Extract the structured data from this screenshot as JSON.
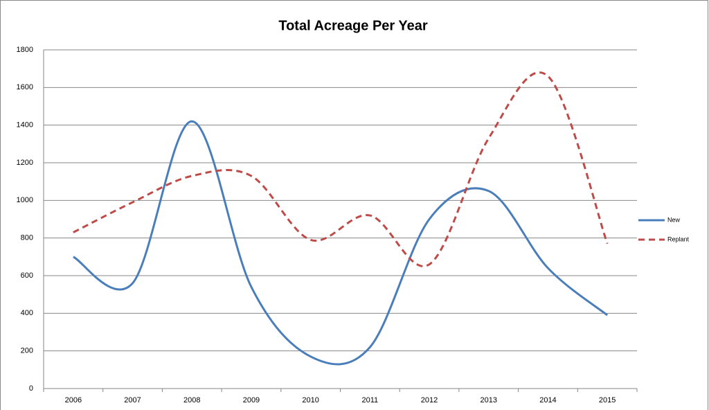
{
  "chart_data": {
    "type": "line",
    "title": "Total Acreage Per Year",
    "categories": [
      "2006",
      "2007",
      "2008",
      "2009",
      "2010",
      "2011",
      "2012",
      "2013",
      "2014",
      "2015"
    ],
    "series": [
      {
        "name": "New",
        "color": "#4a7ebb",
        "dashed": false,
        "values": [
          700,
          560,
          1420,
          540,
          170,
          220,
          900,
          1050,
          640,
          390
        ]
      },
      {
        "name": "Replant",
        "color": "#be4b48",
        "dashed": true,
        "values": [
          830,
          990,
          1130,
          1130,
          790,
          920,
          660,
          1330,
          1660,
          770
        ]
      }
    ],
    "ylim": [
      0,
      1800
    ],
    "yticks": [
      0,
      200,
      400,
      600,
      800,
      1000,
      1200,
      1400,
      1600,
      1800
    ],
    "grid": true,
    "smooth": true,
    "legend": "right"
  }
}
